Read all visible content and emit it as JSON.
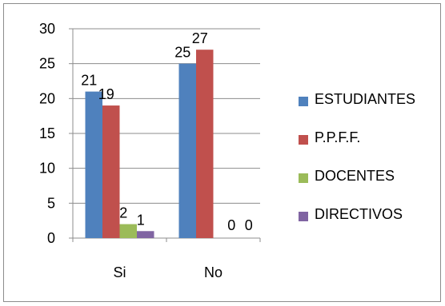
{
  "chart_data": {
    "type": "bar",
    "categories": [
      "Si",
      "No"
    ],
    "series": [
      {
        "name": "ESTUDIANTES",
        "color": "#4F81BD",
        "values": [
          21,
          25
        ]
      },
      {
        "name": "P.P.F.F.",
        "color": "#C0504D",
        "values": [
          19,
          27
        ]
      },
      {
        "name": "DOCENTES",
        "color": "#9BBB59",
        "values": [
          2,
          0
        ]
      },
      {
        "name": "DIRECTIVOS",
        "color": "#8064A2",
        "values": [
          1,
          0
        ]
      }
    ],
    "data_labels": [
      [
        "21",
        "25"
      ],
      [
        "19",
        "27"
      ],
      [
        "2",
        "0"
      ],
      [
        "1",
        "0"
      ]
    ],
    "ylim": [
      0,
      30
    ],
    "yticks": [
      "0",
      "5",
      "10",
      "15",
      "20",
      "25",
      "30"
    ],
    "grid": true,
    "legend_position": "right"
  }
}
